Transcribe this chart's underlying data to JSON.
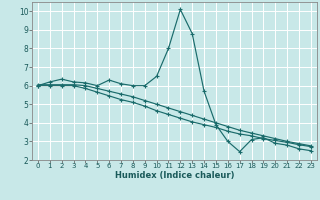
{
  "xlabel": "Humidex (Indice chaleur)",
  "xlim": [
    -0.5,
    23.5
  ],
  "ylim": [
    2,
    10.5
  ],
  "yticks": [
    2,
    3,
    4,
    5,
    6,
    7,
    8,
    9,
    10
  ],
  "xticks": [
    0,
    1,
    2,
    3,
    4,
    5,
    6,
    7,
    8,
    9,
    10,
    11,
    12,
    13,
    14,
    15,
    16,
    17,
    18,
    19,
    20,
    21,
    22,
    23
  ],
  "bg_color": "#c8e8e8",
  "grid_major_color": "#ffffff",
  "grid_minor_color": "#dff0f0",
  "line_color": "#1a6b6b",
  "line1_x": [
    0,
    1,
    2,
    3,
    4,
    5,
    6,
    7,
    8,
    9,
    10,
    11,
    12,
    13,
    14,
    15,
    16,
    17,
    18,
    19,
    20,
    21,
    22,
    23
  ],
  "line1_y": [
    6.0,
    6.2,
    6.35,
    6.2,
    6.15,
    6.0,
    6.3,
    6.1,
    6.0,
    6.0,
    6.5,
    8.0,
    10.1,
    8.8,
    5.7,
    3.9,
    3.0,
    2.45,
    3.1,
    3.2,
    2.9,
    2.8,
    2.6,
    2.5
  ],
  "line2_x": [
    0,
    1,
    2,
    3,
    4,
    5,
    6,
    7,
    8,
    9,
    10,
    11,
    12,
    13,
    14,
    15,
    16,
    17,
    18,
    19,
    20,
    21,
    22,
    23
  ],
  "line2_y": [
    6.0,
    6.0,
    6.0,
    6.0,
    5.85,
    5.65,
    5.45,
    5.25,
    5.1,
    4.9,
    4.65,
    4.45,
    4.25,
    4.05,
    3.9,
    3.75,
    3.55,
    3.4,
    3.3,
    3.15,
    3.05,
    2.95,
    2.82,
    2.72
  ],
  "line3_x": [
    0,
    1,
    2,
    3,
    4,
    5,
    6,
    7,
    8,
    9,
    10,
    11,
    12,
    13,
    14,
    15,
    16,
    17,
    18,
    19,
    20,
    21,
    22,
    23
  ],
  "line3_y": [
    6.05,
    6.05,
    6.05,
    6.05,
    6.0,
    5.85,
    5.7,
    5.55,
    5.4,
    5.2,
    5.0,
    4.8,
    4.6,
    4.4,
    4.2,
    4.0,
    3.8,
    3.6,
    3.45,
    3.3,
    3.15,
    3.0,
    2.88,
    2.76
  ]
}
